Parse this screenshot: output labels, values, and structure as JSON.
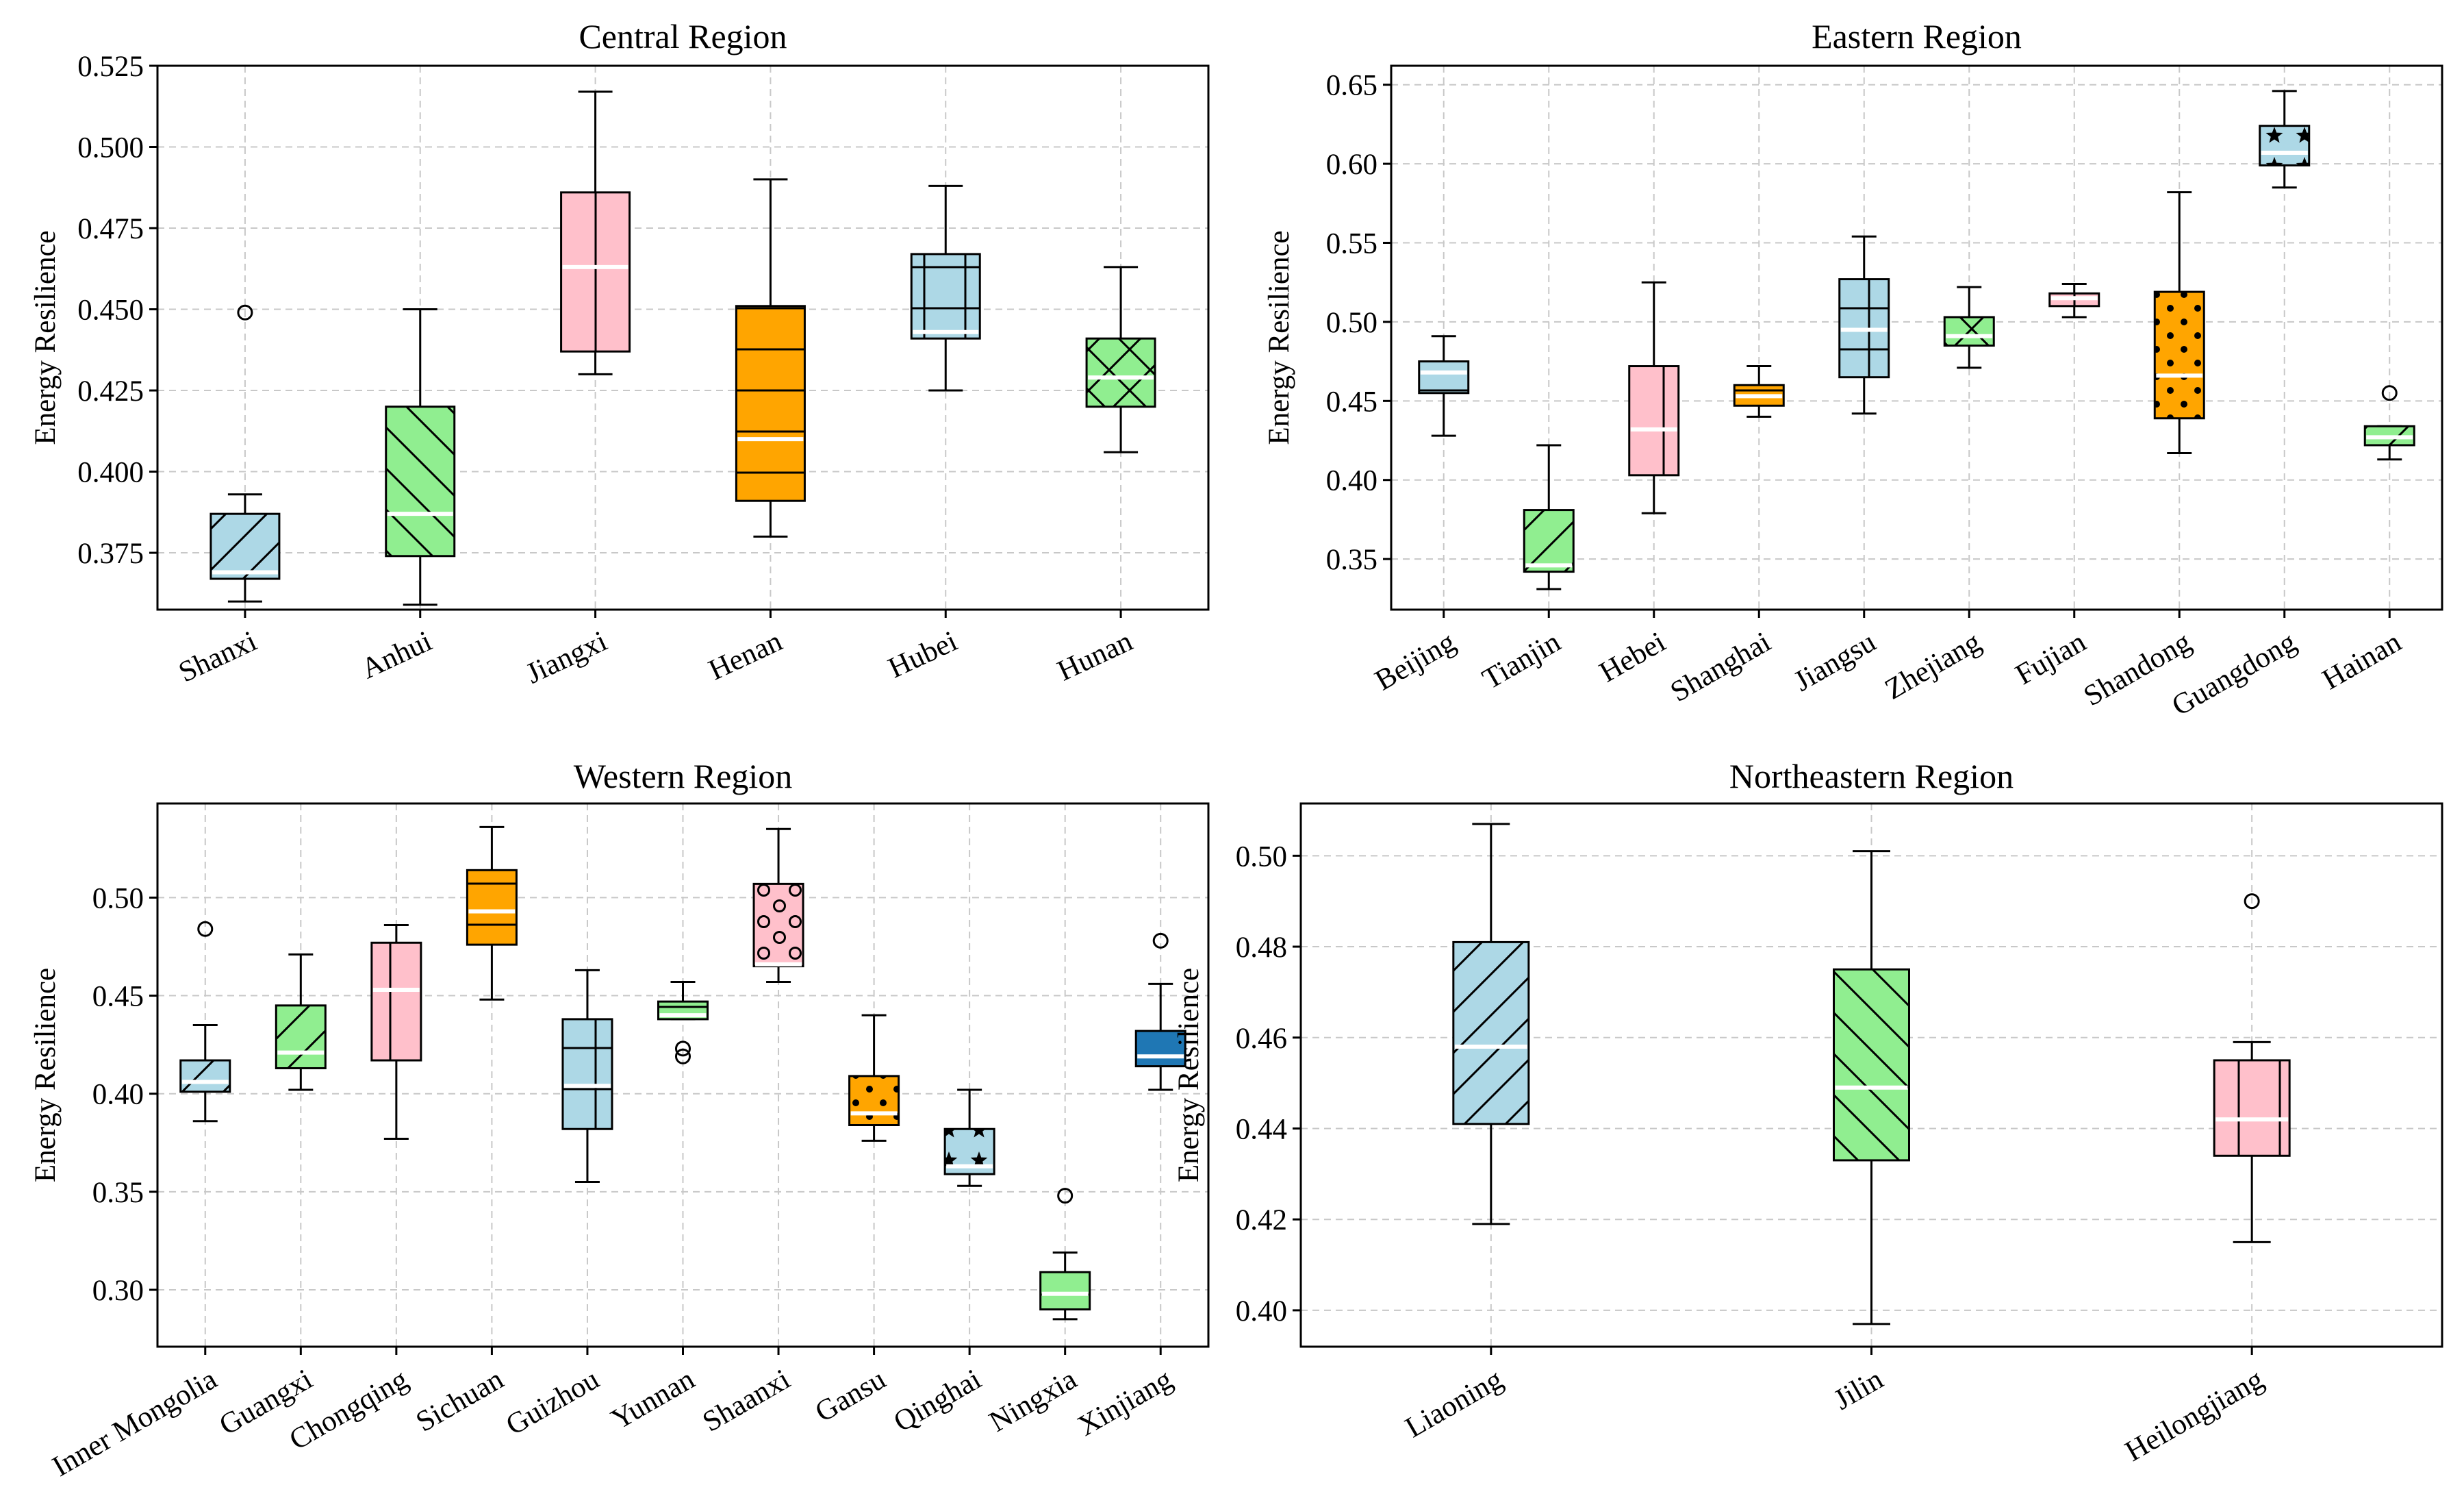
{
  "colors": {
    "lightblue": "#add8e6",
    "lightgreen": "#90ee90",
    "pink": "#ffc0cb",
    "orange": "#ffa500",
    "steelblue": "#1f77b4",
    "median": "#ffffff"
  },
  "ylabel": "Energy Resilience",
  "chart_data": [
    {
      "type": "boxplot",
      "title": "Central Region",
      "ylabel": "Energy Resilience",
      "ylim": [
        0.3575,
        0.525
      ],
      "yticks": [
        "0.375",
        "0.400",
        "0.425",
        "0.450",
        "0.475",
        "0.500",
        "0.525"
      ],
      "ytick_values": [
        0.375,
        0.4,
        0.425,
        0.45,
        0.475,
        0.5,
        0.525
      ],
      "grid": true,
      "categories": [
        "Shanxi",
        "Anhui",
        "Jiangxi",
        "Henan",
        "Hubei",
        "Hunan"
      ],
      "boxes": [
        {
          "name": "Shanxi",
          "whislo": 0.36,
          "q1": 0.367,
          "med": 0.369,
          "q3": 0.387,
          "whishi": 0.393,
          "fliers": [
            0.449
          ],
          "color": "lightblue",
          "hatch": "/"
        },
        {
          "name": "Anhui",
          "whislo": 0.359,
          "q1": 0.374,
          "med": 0.387,
          "q3": 0.42,
          "whishi": 0.45,
          "fliers": [],
          "color": "lightgreen",
          "hatch": "\\"
        },
        {
          "name": "Jiangxi",
          "whislo": 0.43,
          "q1": 0.437,
          "med": 0.463,
          "q3": 0.486,
          "whishi": 0.517,
          "fliers": [],
          "color": "pink",
          "hatch": "|"
        },
        {
          "name": "Henan",
          "whislo": 0.38,
          "q1": 0.391,
          "med": 0.41,
          "q3": 0.451,
          "whishi": 0.49,
          "fliers": [],
          "color": "orange",
          "hatch": "-"
        },
        {
          "name": "Hubei",
          "whislo": 0.425,
          "q1": 0.441,
          "med": 0.443,
          "q3": 0.467,
          "whishi": 0.488,
          "fliers": [],
          "color": "lightblue",
          "hatch": "+"
        },
        {
          "name": "Hunan",
          "whislo": 0.406,
          "q1": 0.42,
          "med": 0.429,
          "q3": 0.441,
          "whishi": 0.463,
          "fliers": [],
          "color": "lightgreen",
          "hatch": "x"
        }
      ]
    },
    {
      "type": "boxplot",
      "title": "Eastern Region",
      "ylabel": "Energy Resilience",
      "ylim": [
        0.318,
        0.662
      ],
      "yticks": [
        "0.35",
        "0.40",
        "0.45",
        "0.50",
        "0.55",
        "0.60",
        "0.65"
      ],
      "ytick_values": [
        0.35,
        0.4,
        0.45,
        0.5,
        0.55,
        0.6,
        0.65
      ],
      "grid": true,
      "categories": [
        "Beijing",
        "Tianjin",
        "Hebei",
        "Shanghai",
        "Jiangsu",
        "Zhejiang",
        "Fujian",
        "Shandong",
        "Guangdong",
        "Hainan"
      ],
      "boxes": [
        {
          "name": "Beijing",
          "whislo": 0.428,
          "q1": 0.455,
          "med": 0.468,
          "q3": 0.475,
          "whishi": 0.491,
          "fliers": [],
          "color": "lightblue",
          "hatch": "-"
        },
        {
          "name": "Tianjin",
          "whislo": 0.331,
          "q1": 0.342,
          "med": 0.346,
          "q3": 0.381,
          "whishi": 0.422,
          "fliers": [],
          "color": "lightgreen",
          "hatch": "/"
        },
        {
          "name": "Hebei",
          "whislo": 0.379,
          "q1": 0.403,
          "med": 0.432,
          "q3": 0.472,
          "whishi": 0.525,
          "fliers": [],
          "color": "pink",
          "hatch": "|"
        },
        {
          "name": "Shanghai",
          "whislo": 0.44,
          "q1": 0.447,
          "med": 0.453,
          "q3": 0.46,
          "whishi": 0.472,
          "fliers": [],
          "color": "orange",
          "hatch": "-"
        },
        {
          "name": "Jiangsu",
          "whislo": 0.442,
          "q1": 0.465,
          "med": 0.495,
          "q3": 0.527,
          "whishi": 0.554,
          "fliers": [],
          "color": "lightblue",
          "hatch": "+"
        },
        {
          "name": "Zhejiang",
          "whislo": 0.471,
          "q1": 0.485,
          "med": 0.491,
          "q3": 0.503,
          "whishi": 0.522,
          "fliers": [],
          "color": "lightgreen",
          "hatch": "x"
        },
        {
          "name": "Fujian",
          "whislo": 0.503,
          "q1": 0.51,
          "med": 0.515,
          "q3": 0.518,
          "whishi": 0.524,
          "fliers": [],
          "color": "pink",
          "hatch": "|"
        },
        {
          "name": "Shandong",
          "whislo": 0.417,
          "q1": 0.439,
          "med": 0.466,
          "q3": 0.519,
          "whishi": 0.582,
          "fliers": [],
          "color": "orange",
          "hatch": "."
        },
        {
          "name": "Guangdong",
          "whislo": 0.585,
          "q1": 0.599,
          "med": 0.607,
          "q3": 0.624,
          "whishi": 0.646,
          "fliers": [],
          "color": "lightblue",
          "hatch": "*"
        },
        {
          "name": "Hainan",
          "whislo": 0.413,
          "q1": 0.422,
          "med": 0.427,
          "q3": 0.434,
          "whishi": 0.434,
          "fliers": [
            0.455
          ],
          "color": "lightgreen",
          "hatch": "/"
        }
      ]
    },
    {
      "type": "boxplot",
      "title": "Western Region",
      "ylabel": "Energy Resilience",
      "ylim": [
        0.271,
        0.548
      ],
      "yticks": [
        "0.30",
        "0.35",
        "0.40",
        "0.45",
        "0.50"
      ],
      "ytick_values": [
        0.3,
        0.35,
        0.4,
        0.45,
        0.5
      ],
      "grid": true,
      "categories": [
        "Inner Mongolia",
        "Guangxi",
        "Chongqing",
        "Sichuan",
        "Guizhou",
        "Yunnan",
        "Shaanxi",
        "Gansu",
        "Qinghai",
        "Ningxia",
        "Xinjiang"
      ],
      "boxes": [
        {
          "name": "Inner Mongolia",
          "whislo": 0.386,
          "q1": 0.401,
          "med": 0.406,
          "q3": 0.417,
          "whishi": 0.435,
          "fliers": [
            0.484
          ],
          "color": "lightblue",
          "hatch": "/"
        },
        {
          "name": "Guangxi",
          "whislo": 0.402,
          "q1": 0.413,
          "med": 0.421,
          "q3": 0.445,
          "whishi": 0.471,
          "fliers": [],
          "color": "lightgreen",
          "hatch": "/"
        },
        {
          "name": "Chongqing",
          "whislo": 0.377,
          "q1": 0.417,
          "med": 0.453,
          "q3": 0.477,
          "whishi": 0.486,
          "fliers": [],
          "color": "pink",
          "hatch": "|"
        },
        {
          "name": "Sichuan",
          "whislo": 0.448,
          "q1": 0.476,
          "med": 0.493,
          "q3": 0.514,
          "whishi": 0.536,
          "fliers": [],
          "color": "orange",
          "hatch": "-"
        },
        {
          "name": "Guizhou",
          "whislo": 0.355,
          "q1": 0.382,
          "med": 0.404,
          "q3": 0.438,
          "whishi": 0.463,
          "fliers": [],
          "color": "lightblue",
          "hatch": "+"
        },
        {
          "name": "Yunnan",
          "whislo": 0.438,
          "q1": 0.438,
          "med": 0.44,
          "q3": 0.447,
          "whishi": 0.457,
          "fliers": [
            0.423,
            0.419
          ],
          "color": "lightgreen",
          "hatch": "-"
        },
        {
          "name": "Shaanxi",
          "whislo": 0.457,
          "q1": 0.465,
          "med": 0.466,
          "q3": 0.507,
          "whishi": 0.535,
          "fliers": [],
          "color": "pink",
          "hatch": "o"
        },
        {
          "name": "Gansu",
          "whislo": 0.376,
          "q1": 0.384,
          "med": 0.39,
          "q3": 0.409,
          "whishi": 0.44,
          "fliers": [],
          "color": "orange",
          "hatch": "."
        },
        {
          "name": "Qinghai",
          "whislo": 0.353,
          "q1": 0.359,
          "med": 0.363,
          "q3": 0.382,
          "whishi": 0.402,
          "fliers": [],
          "color": "lightblue",
          "hatch": "*"
        },
        {
          "name": "Ningxia",
          "whislo": 0.285,
          "q1": 0.29,
          "med": 0.298,
          "q3": 0.309,
          "whishi": 0.319,
          "fliers": [
            0.348
          ],
          "color": "lightgreen",
          "hatch": "-"
        },
        {
          "name": "Xinjiang",
          "whislo": 0.402,
          "q1": 0.414,
          "med": 0.419,
          "q3": 0.432,
          "whishi": 0.456,
          "fliers": [
            0.478
          ],
          "color": "steelblue",
          "hatch": ""
        }
      ]
    },
    {
      "type": "boxplot",
      "title": "Northeastern Region",
      "ylabel": "Energy Resilience",
      "ylim": [
        0.392,
        0.5115
      ],
      "yticks": [
        "0.40",
        "0.42",
        "0.44",
        "0.46",
        "0.48",
        "0.50"
      ],
      "ytick_values": [
        0.4,
        0.42,
        0.44,
        0.46,
        0.48,
        0.5
      ],
      "grid": true,
      "categories": [
        "Liaoning",
        "Jilin",
        "Heilongjiang"
      ],
      "boxes": [
        {
          "name": "Liaoning",
          "whislo": 0.419,
          "q1": 0.441,
          "med": 0.458,
          "q3": 0.481,
          "whishi": 0.507,
          "fliers": [],
          "color": "lightblue",
          "hatch": "/"
        },
        {
          "name": "Jilin",
          "whislo": 0.397,
          "q1": 0.433,
          "med": 0.449,
          "q3": 0.475,
          "whishi": 0.501,
          "fliers": [],
          "color": "lightgreen",
          "hatch": "\\"
        },
        {
          "name": "Heilongjiang",
          "whislo": 0.415,
          "q1": 0.434,
          "med": 0.442,
          "q3": 0.455,
          "whishi": 0.459,
          "fliers": [
            0.49
          ],
          "color": "pink",
          "hatch": "|"
        }
      ]
    }
  ]
}
